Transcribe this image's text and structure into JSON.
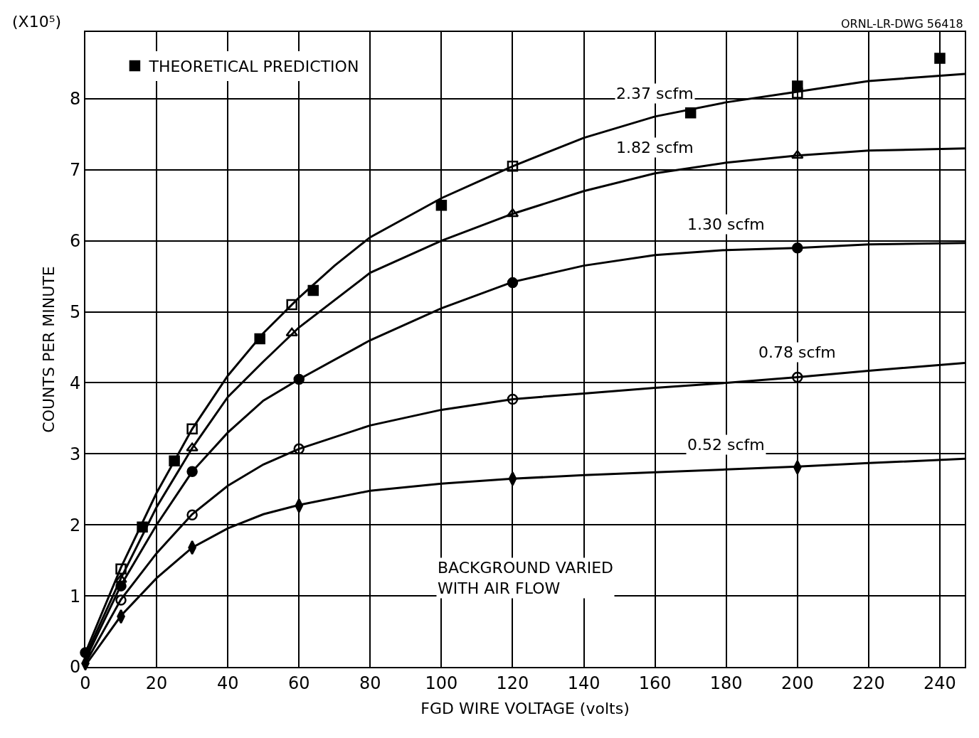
{
  "chart_data": {
    "type": "line",
    "xlabel": "FGD WIRE VOLTAGE (volts)",
    "ylabel": "COUNTS PER MINUTE",
    "annotations": [
      "(X10⁵)",
      "BACKGROUND VARIED\nWITH AIR FLOW",
      "ORNL-LR-DWG 56418"
    ],
    "xlim": [
      0,
      247
    ],
    "xticks": [
      0,
      20,
      40,
      60,
      80,
      100,
      120,
      140,
      160,
      180,
      200,
      220,
      240
    ],
    "ylim": [
      0,
      8.94
    ],
    "yticks": [
      0,
      1,
      2,
      3,
      4,
      5,
      6,
      7,
      8
    ],
    "grid": true,
    "legend": "top left",
    "series": [
      {
        "name": "THEORETICAL PREDICTION",
        "type": "scatter",
        "marker": "square",
        "color": "#000000",
        "x": [
          16,
          25,
          49,
          64,
          100,
          170,
          200,
          240
        ],
        "values": [
          1.97,
          2.9,
          4.62,
          5.3,
          6.5,
          7.8,
          8.18,
          8.57
        ]
      },
      {
        "name": "2.37 scfm",
        "marker": "none",
        "color": "#000000",
        "x": [
          0,
          10,
          20,
          30,
          40,
          50,
          60,
          70,
          80,
          100,
          120,
          140,
          160,
          180,
          200,
          220,
          247
        ],
        "values": [
          0.2,
          1.4,
          2.45,
          3.35,
          4.1,
          4.7,
          5.2,
          5.65,
          6.05,
          6.6,
          7.05,
          7.45,
          7.75,
          7.95,
          8.1,
          8.25,
          8.35
        ]
      },
      {
        "type": "scatter",
        "marker": "square-open",
        "color": "#000000",
        "x": [
          10,
          30,
          58,
          120,
          200
        ],
        "values": [
          1.38,
          3.35,
          5.1,
          7.05,
          8.08
        ]
      },
      {
        "name": "1.82 scfm",
        "marker": "none",
        "color": "#000000",
        "x": [
          0,
          10,
          20,
          30,
          40,
          50,
          60,
          80,
          100,
          120,
          140,
          160,
          180,
          200,
          220,
          247
        ],
        "values": [
          0.15,
          1.25,
          2.25,
          3.08,
          3.8,
          4.3,
          4.78,
          5.55,
          6.0,
          6.38,
          6.7,
          6.95,
          7.1,
          7.2,
          7.27,
          7.3
        ]
      },
      {
        "type": "scatter",
        "marker": "triangle-open",
        "color": "#000000",
        "x": [
          10,
          30,
          58,
          120,
          200
        ],
        "values": [
          1.23,
          3.08,
          4.7,
          6.38,
          7.2
        ]
      },
      {
        "name": "1.30 scfm",
        "marker": "none",
        "color": "#000000",
        "x": [
          0,
          10,
          20,
          30,
          40,
          50,
          60,
          80,
          100,
          120,
          140,
          160,
          180,
          200,
          220,
          247
        ],
        "values": [
          0.1,
          1.15,
          2.0,
          2.75,
          3.3,
          3.75,
          4.05,
          4.6,
          5.05,
          5.42,
          5.65,
          5.8,
          5.87,
          5.9,
          5.95,
          5.97
        ]
      },
      {
        "type": "scatter",
        "marker": "circle",
        "color": "#000000",
        "x": [
          0,
          10,
          30,
          60,
          120,
          200
        ],
        "values": [
          0.2,
          1.14,
          2.75,
          4.05,
          5.41,
          5.9
        ]
      },
      {
        "name": "0.78 scfm",
        "marker": "none",
        "color": "#000000",
        "x": [
          0,
          10,
          20,
          30,
          40,
          50,
          60,
          80,
          100,
          120,
          140,
          160,
          180,
          200,
          220,
          247
        ],
        "values": [
          0.05,
          0.95,
          1.6,
          2.15,
          2.55,
          2.85,
          3.07,
          3.4,
          3.62,
          3.77,
          3.85,
          3.93,
          4.0,
          4.08,
          4.17,
          4.28
        ]
      },
      {
        "type": "scatter",
        "marker": "circle-open",
        "color": "#000000",
        "x": [
          10,
          30,
          60,
          120,
          200
        ],
        "values": [
          0.94,
          2.14,
          3.07,
          3.77,
          4.08
        ]
      },
      {
        "name": "0.52 scfm",
        "marker": "none",
        "color": "#000000",
        "x": [
          0,
          10,
          20,
          30,
          40,
          50,
          60,
          80,
          100,
          120,
          140,
          160,
          180,
          200,
          220,
          247
        ],
        "values": [
          0.02,
          0.72,
          1.25,
          1.68,
          1.95,
          2.15,
          2.28,
          2.48,
          2.58,
          2.65,
          2.7,
          2.74,
          2.78,
          2.82,
          2.87,
          2.93
        ]
      },
      {
        "type": "scatter",
        "marker": "diamond",
        "color": "#000000",
        "x": [
          0,
          10,
          30,
          60,
          120,
          200
        ],
        "values": [
          0.05,
          0.71,
          1.68,
          2.27,
          2.65,
          2.81
        ]
      }
    ]
  }
}
